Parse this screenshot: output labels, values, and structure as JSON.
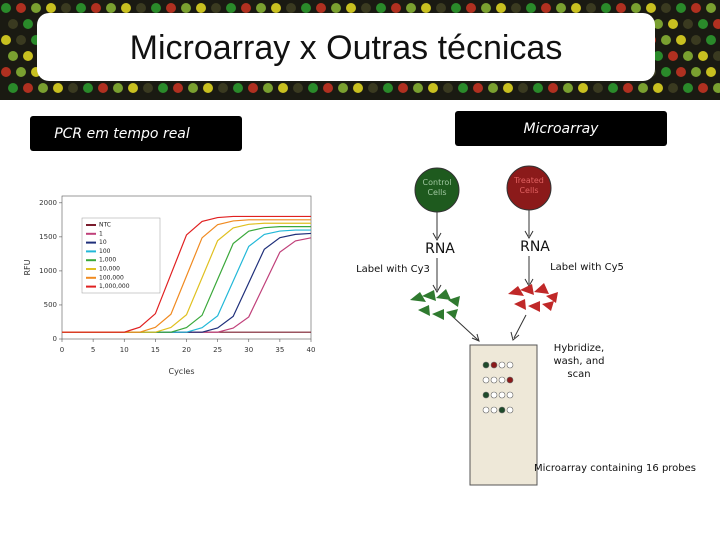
{
  "header": {
    "title": "Microarray x Outras técnicas"
  },
  "left_panel": {
    "label": "PCR em tempo real"
  },
  "right_panel": {
    "label": "Microarray"
  },
  "chart_data": {
    "type": "line",
    "x_label": "Cycles",
    "y_label": "RFU",
    "x": [
      0,
      2.5,
      5,
      7.5,
      10,
      12.5,
      15,
      17.5,
      20,
      22.5,
      25,
      27.5,
      30,
      32.5,
      35,
      37.5,
      40
    ],
    "xlim": [
      0,
      40
    ],
    "xticks": [
      0,
      5,
      10,
      15,
      20,
      25,
      30,
      35,
      40
    ],
    "ylim": [
      0,
      2100
    ],
    "yticks": [
      0,
      500,
      1000,
      1500,
      2000
    ],
    "series": [
      {
        "name": "NTC",
        "color": "#7a1c2c",
        "values": [
          100,
          100,
          100,
          100,
          100,
          100,
          100,
          100,
          100,
          100,
          100,
          100,
          100,
          100,
          100,
          100,
          100
        ]
      },
      {
        "name": "1",
        "color": "#c0407a",
        "values": [
          100,
          100,
          100,
          100,
          100,
          100,
          100,
          100,
          100,
          100,
          100,
          160,
          324,
          800,
          1276,
          1440,
          1486
        ]
      },
      {
        "name": "10",
        "color": "#1f2f7a",
        "values": [
          100,
          100,
          100,
          100,
          100,
          100,
          100,
          100,
          100,
          100,
          162,
          332,
          825,
          1318,
          1488,
          1536,
          1550
        ]
      },
      {
        "name": "100",
        "color": "#22b8d8",
        "values": [
          100,
          100,
          100,
          100,
          100,
          100,
          100,
          100,
          100,
          165,
          340,
          850,
          1360,
          1536,
          1585,
          1600,
          1600
        ]
      },
      {
        "name": "1,000",
        "color": "#3aa83a",
        "values": [
          100,
          100,
          100,
          100,
          100,
          100,
          100,
          100,
          167,
          348,
          875,
          1402,
          1583,
          1635,
          1650,
          1650,
          1650
        ]
      },
      {
        "name": "10,000",
        "color": "#e0c020",
        "values": [
          100,
          100,
          100,
          100,
          100,
          100,
          100,
          169,
          356,
          900,
          1444,
          1631,
          1684,
          1700,
          1700,
          1700,
          1700
        ]
      },
      {
        "name": "100,000",
        "color": "#f08a20",
        "values": [
          100,
          100,
          100,
          100,
          100,
          100,
          171,
          364,
          925,
          1486,
          1679,
          1734,
          1750,
          1750,
          1750,
          1750,
          1750
        ]
      },
      {
        "name": "1,000,000",
        "color": "#e02020",
        "values": [
          100,
          100,
          100,
          100,
          100,
          173,
          372,
          950,
          1528,
          1727,
          1783,
          1800,
          1800,
          1800,
          1800,
          1800,
          1800
        ]
      }
    ]
  },
  "diagram": {
    "control_cells": "Control Cells",
    "treated_cells": "Treated Cells",
    "rna_left": "RNA",
    "rna_right": "RNA",
    "label_cy3": "Label with Cy3",
    "label_cy5": "Label with Cy5",
    "hybridize": "Hybridize, wash, and scan",
    "microarray_caption": "Microarray containing 16 probes"
  }
}
